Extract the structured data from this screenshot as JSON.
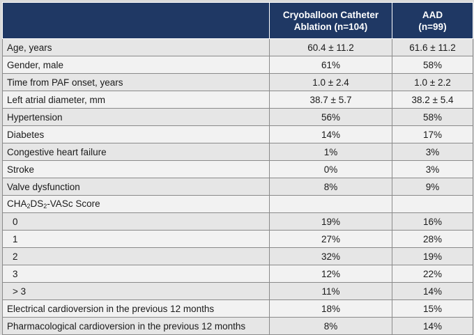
{
  "header": {
    "col1": "",
    "col2_line1": "Cryoballoon Catheter",
    "col2_line2": "Ablation (n=104)",
    "col3_line1": "AAD",
    "col3_line2": "(n=99)"
  },
  "rows": [
    {
      "label": "Age, years",
      "cryo": "60.4 ± 11.2",
      "aad": "61.6 ± 11.2"
    },
    {
      "label": "Gender, male",
      "cryo": "61%",
      "aad": "58%"
    },
    {
      "label": "Time from PAF onset, years",
      "cryo": "1.0 ± 2.4",
      "aad": "1.0 ± 2.2"
    },
    {
      "label": "Left atrial diameter, mm",
      "cryo": "38.7 ± 5.7",
      "aad": "38.2 ± 5.4"
    },
    {
      "label": "Hypertension",
      "cryo": "56%",
      "aad": "58%"
    },
    {
      "label": "Diabetes",
      "cryo": "14%",
      "aad": "17%"
    },
    {
      "label": "Congestive heart failure",
      "cryo": "1%",
      "aad": "3%"
    },
    {
      "label": "Stroke",
      "cryo": "0%",
      "aad": "3%"
    },
    {
      "label": "Valve dysfunction",
      "cryo": "8%",
      "aad": "9%"
    },
    {
      "label_parts": [
        "CHA",
        "2",
        "DS",
        "2",
        "-VASc Score"
      ],
      "cryo": "",
      "aad": ""
    },
    {
      "label": "0",
      "cryo": "19%",
      "aad": "16%",
      "indent": true
    },
    {
      "label": "1",
      "cryo": "27%",
      "aad": "28%",
      "indent": true
    },
    {
      "label": "2",
      "cryo": "32%",
      "aad": "19%",
      "indent": true
    },
    {
      "label": "3",
      "cryo": "12%",
      "aad": "22%",
      "indent": true
    },
    {
      "label": "> 3",
      "cryo": "11%",
      "aad": "14%",
      "indent": true
    },
    {
      "label": "Electrical cardioversion in the previous 12 months",
      "cryo": "18%",
      "aad": "15%"
    },
    {
      "label": "Pharmacological cardioversion in the previous 12 months",
      "cryo": "8%",
      "aad": "14%"
    }
  ]
}
